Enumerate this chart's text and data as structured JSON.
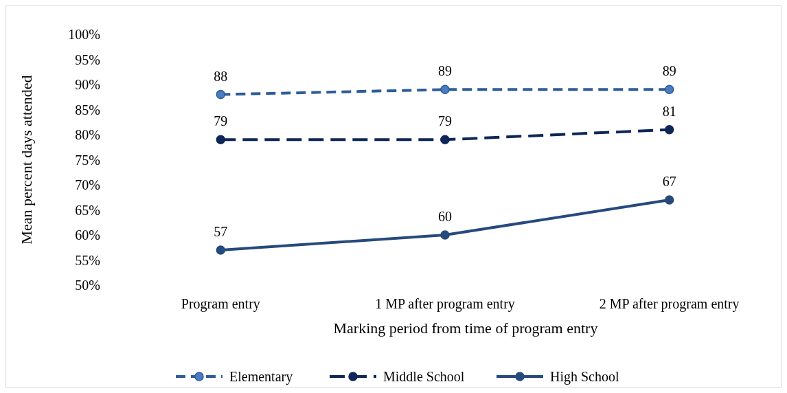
{
  "chart_data": {
    "type": "line",
    "xlabel": "Marking period from time of program entry",
    "ylabel": "Mean percent days attended",
    "categories": [
      "Program entry",
      "1 MP after program entry",
      "2 MP after program entry"
    ],
    "series": [
      {
        "name": "Elementary",
        "color": "#2e5c98",
        "values": [
          88,
          89,
          89
        ],
        "line_style": "dashed"
      },
      {
        "name": "Middle School",
        "color": "#0e2758",
        "values": [
          79,
          79,
          81
        ],
        "line_style": "dashed"
      },
      {
        "name": "High School",
        "color": "#264a7c",
        "values": [
          57,
          60,
          67
        ],
        "line_style": "solid"
      }
    ],
    "ylim": [
      50,
      100
    ],
    "yticks": [
      {
        "value": 50,
        "label": "50%"
      },
      {
        "value": 55,
        "label": "55%"
      },
      {
        "value": 60,
        "label": "60%"
      },
      {
        "value": 65,
        "label": "65%"
      },
      {
        "value": 70,
        "label": "70%"
      },
      {
        "value": 75,
        "label": "75%"
      },
      {
        "value": 80,
        "label": "80%"
      },
      {
        "value": 85,
        "label": "85%"
      },
      {
        "value": 90,
        "label": "90%"
      },
      {
        "value": 95,
        "label": "95%"
      },
      {
        "value": 100,
        "label": "100%"
      }
    ],
    "grid": false,
    "legend": "bottom",
    "marker": "circle",
    "data_labels": true
  }
}
